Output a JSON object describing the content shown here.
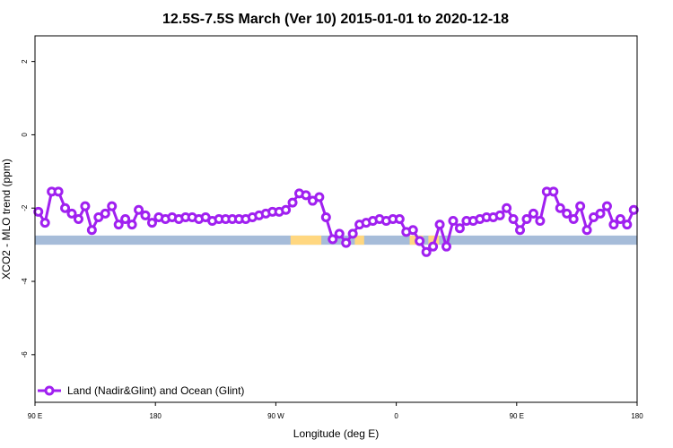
{
  "chart_data": {
    "type": "line",
    "title": "12.5S-7.5S March (Ver 10)   2015-01-01 to 2020-12-18",
    "xlabel": "Longitude (deg E)",
    "ylabel": "XCO2 - MLO trend (ppm)",
    "xlim": [
      90,
      540
    ],
    "ylim": [
      -7.3,
      2.7
    ],
    "x_ticks": [
      {
        "value": 90,
        "label": "90 E"
      },
      {
        "value": 180,
        "label": "180"
      },
      {
        "value": 270,
        "label": "90 W"
      },
      {
        "value": 360,
        "label": "0"
      },
      {
        "value": 450,
        "label": "90 E"
      },
      {
        "value": 540,
        "label": "180"
      }
    ],
    "y_ticks": [
      {
        "value": 2,
        "label": "2"
      },
      {
        "value": 0,
        "label": "0"
      },
      {
        "value": -2,
        "label": "-2"
      },
      {
        "value": -4,
        "label": "-4"
      },
      {
        "value": -6,
        "label": "-6"
      }
    ],
    "grid": false,
    "legend": {
      "placement": "bottom-left",
      "entries": [
        "Land (Nadir&Glint) and Ocean (Glint)"
      ]
    },
    "series": [
      {
        "name": "Land (Nadir&Glint) and Ocean (Glint)",
        "color": "#a020f0",
        "x": [
          92.5,
          97.5,
          102.5,
          107.5,
          112.5,
          117.5,
          122.5,
          127.5,
          132.5,
          137.5,
          142.5,
          147.5,
          152.5,
          157.5,
          162.5,
          167.5,
          172.5,
          177.5,
          182.5,
          187.5,
          192.5,
          197.5,
          202.5,
          207.5,
          212.5,
          217.5,
          222.5,
          227.5,
          232.5,
          237.5,
          242.5,
          247.5,
          252.5,
          257.5,
          262.5,
          267.5,
          272.5,
          277.5,
          282.5,
          287.5,
          292.5,
          297.5,
          302.5,
          307.5,
          312.5,
          317.5,
          322.5,
          327.5,
          332.5,
          337.5,
          342.5,
          347.5,
          352.5,
          357.5,
          362.5,
          367.5,
          372.5,
          377.5,
          382.5,
          387.5,
          392.5,
          397.5,
          402.5,
          407.5,
          412.5,
          417.5,
          422.5,
          427.5,
          432.5,
          437.5,
          442.5,
          447.5,
          452.5,
          457.5,
          462.5,
          467.5,
          472.5,
          477.5,
          482.5,
          487.5,
          492.5,
          497.5,
          502.5,
          507.5,
          512.5,
          517.5,
          522.5,
          527.5,
          532.5,
          537.5
        ],
        "y": [
          -2.1,
          -2.4,
          -1.55,
          -1.55,
          -2.0,
          -2.15,
          -2.3,
          -1.95,
          -2.6,
          -2.25,
          -2.15,
          -1.95,
          -2.45,
          -2.3,
          -2.45,
          -2.05,
          -2.2,
          -2.4,
          -2.25,
          -2.3,
          -2.25,
          -2.3,
          -2.25,
          -2.25,
          -2.3,
          -2.25,
          -2.35,
          -2.3,
          -2.3,
          -2.3,
          -2.3,
          -2.3,
          -2.25,
          -2.2,
          -2.15,
          -2.1,
          -2.1,
          -2.05,
          -1.85,
          -1.6,
          -1.65,
          -1.8,
          -1.7,
          -2.25,
          -2.85,
          -2.7,
          -2.95,
          -2.7,
          -2.45,
          -2.4,
          -2.35,
          -2.3,
          -2.35,
          -2.3,
          -2.3,
          -2.65,
          -2.6,
          -2.9,
          -3.2,
          -3.05,
          -2.45,
          -3.05,
          -2.35,
          -2.55,
          -2.35,
          -2.35,
          -2.3,
          -2.25,
          -2.25,
          -2.2,
          -2.0,
          -2.3,
          -2.6,
          -2.3,
          -2.15,
          -2.35,
          -1.55,
          -1.55,
          -2.0,
          -2.15,
          -2.3,
          -1.95,
          -2.6,
          -2.25,
          -2.15,
          -1.95,
          -2.45,
          -2.3,
          -2.45,
          -2.05
        ]
      }
    ],
    "surface_strip": {
      "y_range": [
        -2.75,
        -3.0
      ],
      "ocean_color": "#a6bcd9",
      "land_color": "#ffd780",
      "land_ranges": [
        [
          281,
          304
        ],
        [
          329,
          336
        ],
        [
          370,
          380
        ],
        [
          384,
          392
        ]
      ]
    }
  }
}
